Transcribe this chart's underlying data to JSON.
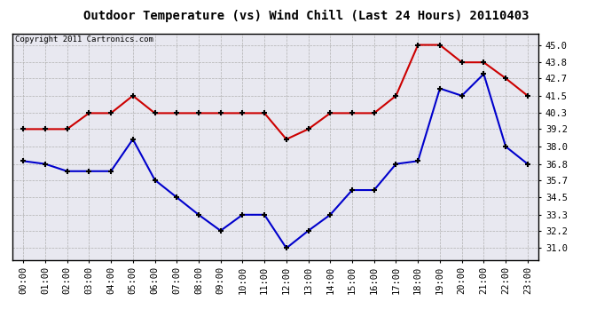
{
  "title": "Outdoor Temperature (vs) Wind Chill (Last 24 Hours) 20110403",
  "copyright": "Copyright 2011 Cartronics.com",
  "hours": [
    "00:00",
    "01:00",
    "02:00",
    "03:00",
    "04:00",
    "05:00",
    "06:00",
    "07:00",
    "08:00",
    "09:00",
    "10:00",
    "11:00",
    "12:00",
    "13:00",
    "14:00",
    "15:00",
    "16:00",
    "17:00",
    "18:00",
    "19:00",
    "20:00",
    "21:00",
    "22:00",
    "23:00"
  ],
  "temp": [
    39.2,
    39.2,
    39.2,
    40.3,
    40.3,
    41.5,
    40.3,
    40.3,
    40.3,
    40.3,
    40.3,
    40.3,
    38.5,
    39.2,
    40.3,
    40.3,
    40.3,
    41.5,
    45.0,
    45.0,
    43.8,
    43.8,
    42.7,
    41.5
  ],
  "wind_chill": [
    37.0,
    36.8,
    36.3,
    36.3,
    36.3,
    38.5,
    35.7,
    34.5,
    33.3,
    32.2,
    33.3,
    33.3,
    31.0,
    32.2,
    33.3,
    35.0,
    35.0,
    36.8,
    37.0,
    42.0,
    41.5,
    43.0,
    38.0,
    36.8
  ],
  "temp_color": "#cc0000",
  "wind_chill_color": "#0000cc",
  "fig_bg_color": "#ffffff",
  "plot_bg_color": "#e8e8f0",
  "grid_color": "#b0b0b0",
  "yticks": [
    31.0,
    32.2,
    33.3,
    34.5,
    35.7,
    36.8,
    38.0,
    39.2,
    40.3,
    41.5,
    42.7,
    43.8,
    45.0
  ],
  "ylim": [
    30.2,
    45.8
  ],
  "xlim": [
    -0.5,
    23.5
  ],
  "title_fontsize": 10,
  "axis_fontsize": 7.5,
  "copyright_fontsize": 6.5
}
